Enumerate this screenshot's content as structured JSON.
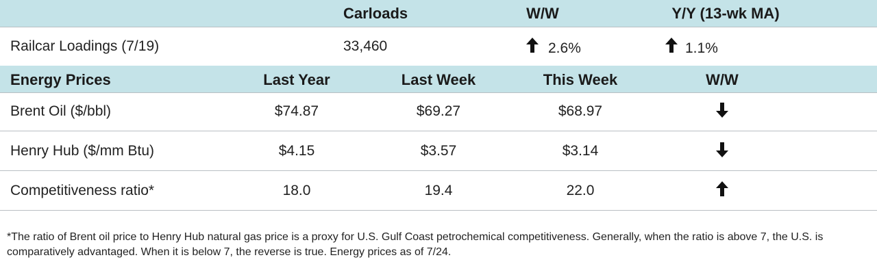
{
  "colors": {
    "header_band": "#c4e3e8",
    "rule": "#b9bfc3",
    "text": "#1a1a1a"
  },
  "railcar": {
    "headers": {
      "carloads": "Carloads",
      "ww": "W/W",
      "yy": "Y/Y (13-wk MA)"
    },
    "row": {
      "label": "Railcar Loadings (7/19)",
      "carloads": "33,460",
      "ww_icon": "up-arrow-icon",
      "ww": "2.6%",
      "yy_icon": "up-arrow-icon",
      "yy": "1.1%"
    }
  },
  "energy": {
    "headers": {
      "title": "Energy Prices",
      "last_year": "Last Year",
      "last_week": "Last Week",
      "this_week": "This Week",
      "ww": "W/W"
    },
    "rows": [
      {
        "label": "Brent Oil ($/bbl)",
        "last_year": "$74.87",
        "last_week": "$69.27",
        "this_week": "$68.97",
        "ww_icon": "down-arrow-icon"
      },
      {
        "label": "Henry Hub ($/mm Btu)",
        "last_year": "$4.15",
        "last_week": "$3.57",
        "this_week": "$3.14",
        "ww_icon": "down-arrow-icon"
      },
      {
        "label": "Competitiveness ratio*",
        "last_year": "18.0",
        "last_week": "19.4",
        "this_week": "22.0",
        "ww_icon": "up-arrow-icon"
      }
    ]
  },
  "footnote": "*The ratio of Brent oil price to Henry Hub natural gas price is a proxy for  U.S. Gulf Coast petrochemical competitiveness. Generally, when the ratio is above 7, the U.S. is comparatively advantaged. When it is below 7, the reverse is true. Energy prices as of 7/24."
}
